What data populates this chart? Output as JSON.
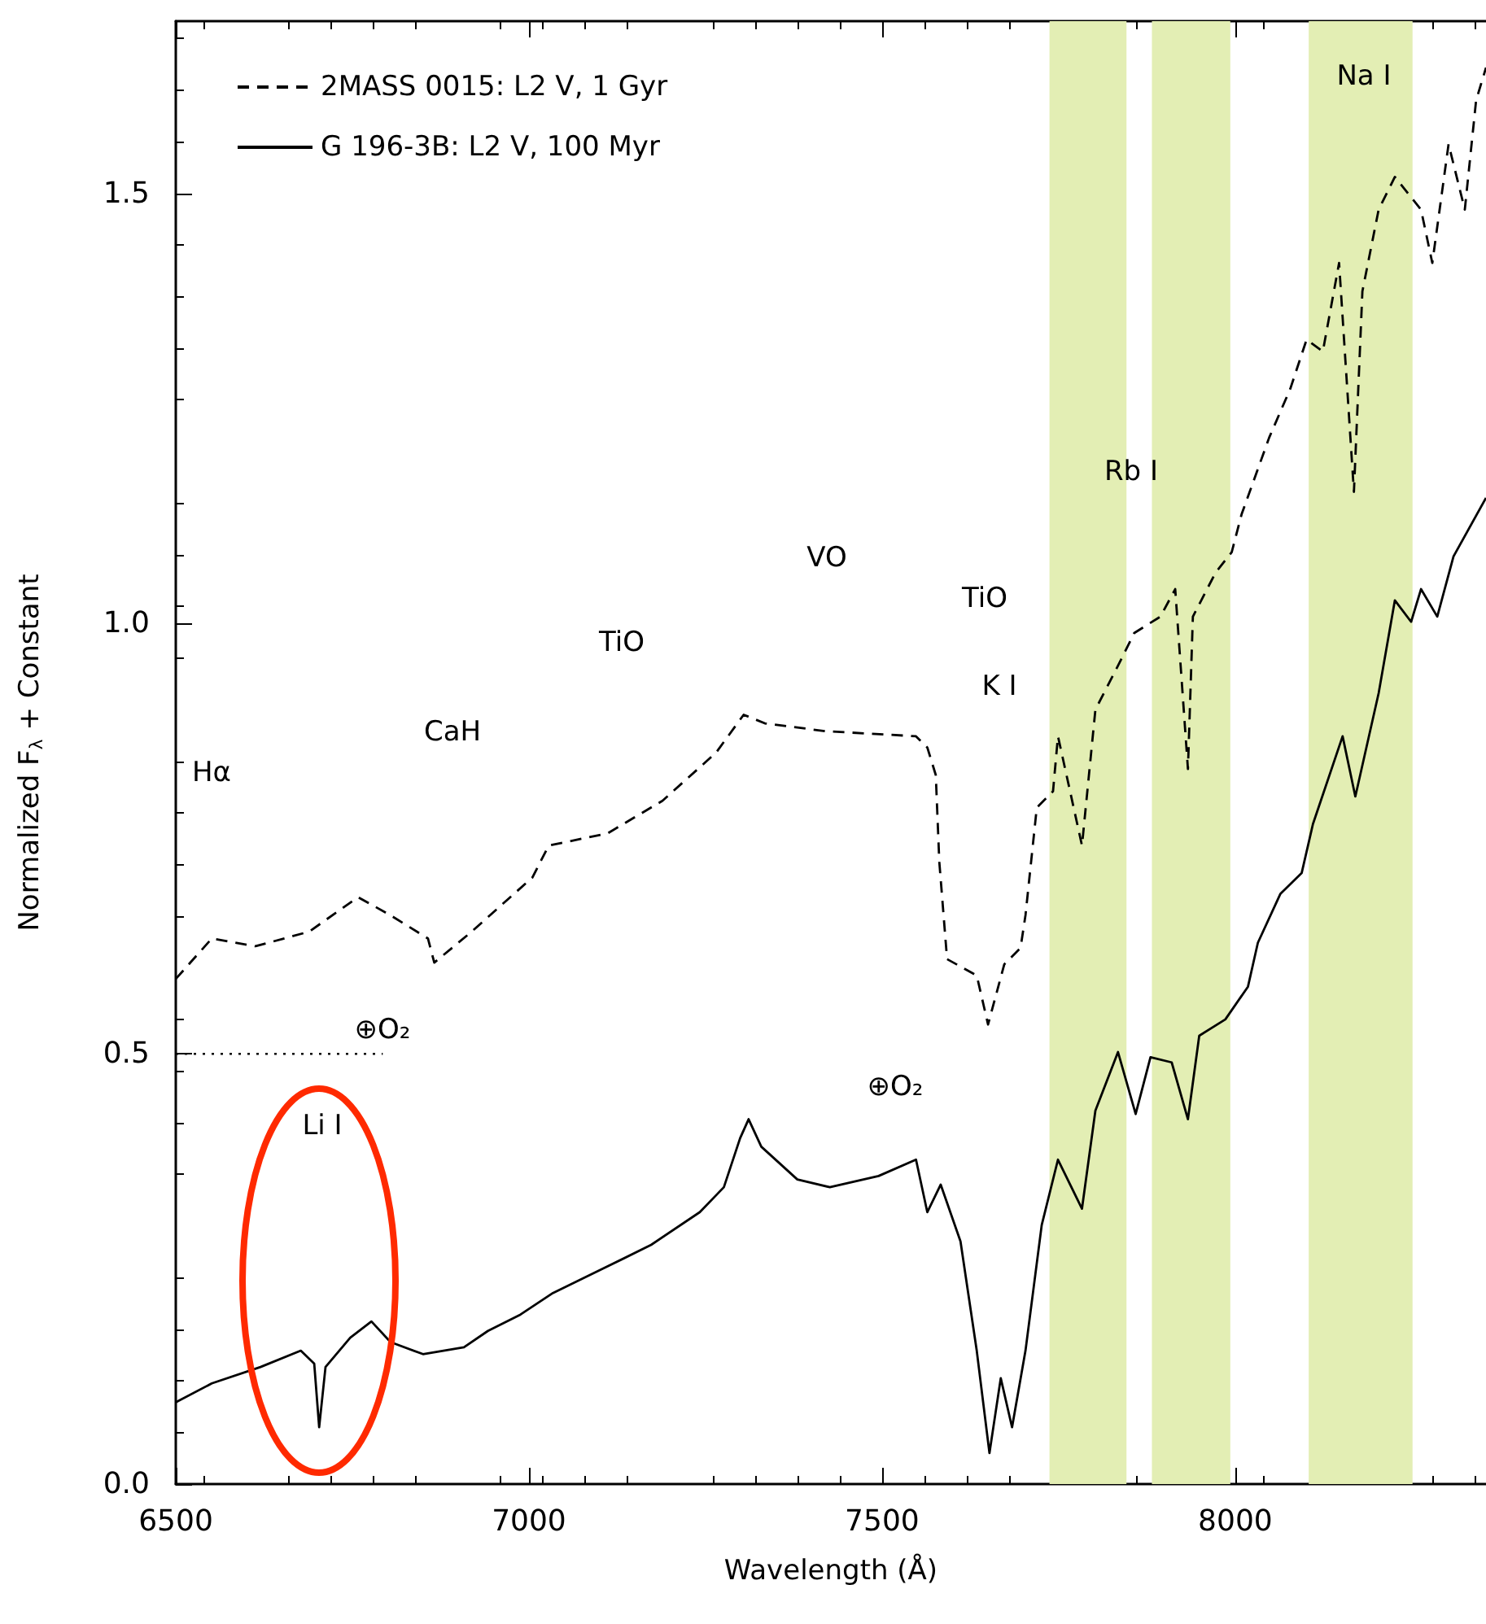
{
  "chart_data": {
    "type": "line",
    "xlabel": "Wavelength (Å)",
    "ylabel": "Normalized F$_{λ}$ + Constant",
    "xlim": [
      6500,
      8355
    ],
    "xticks": [
      6500,
      7000,
      7500,
      8000
    ],
    "ylim": [
      0,
      1.7
    ],
    "yticks": [
      {
        "value": 0,
        "label": "0.0"
      },
      {
        "value": 0.5,
        "label": "0.5"
      },
      {
        "value": 1,
        "label": "1.0"
      },
      {
        "value": 1.5,
        "label": "1.5"
      }
    ],
    "grid": false,
    "legend": "top left",
    "marker": "none",
    "series": [
      {
        "name": "2MASS 0015: L2 V, 1 Gyr",
        "color": "#000000",
        "line_style": "dashed",
        "x": [
          6500,
          6551,
          6613,
          6689,
          6758,
          6804,
          6857,
          6866,
          6919,
          7005,
          7028,
          7111,
          7189,
          7265,
          7304,
          7334,
          7419,
          7548,
          7564,
          7576,
          7581,
          7592,
          7634,
          7650,
          7673,
          7696,
          7703,
          7719,
          7742,
          7749,
          7783,
          7802,
          7834,
          7857,
          7894,
          7915,
          7933,
          7940,
          7972,
          7995,
          8009,
          8048,
          8078,
          8101,
          8124,
          8147,
          8168,
          8180,
          8203,
          8226,
          8263,
          8279,
          8302,
          8325,
          8341,
          8355
        ],
        "values": [
          0.587,
          0.634,
          0.625,
          0.642,
          0.682,
          0.661,
          0.634,
          0.606,
          0.642,
          0.705,
          0.742,
          0.756,
          0.794,
          0.85,
          0.894,
          0.884,
          0.875,
          0.869,
          0.856,
          0.824,
          0.723,
          0.61,
          0.591,
          0.534,
          0.604,
          0.623,
          0.661,
          0.786,
          0.805,
          0.869,
          0.742,
          0.9,
          0.951,
          0.989,
          1.008,
          1.04,
          0.831,
          1.008,
          1.059,
          1.083,
          1.127,
          1.216,
          1.273,
          1.33,
          1.316,
          1.419,
          1.153,
          1.386,
          1.481,
          1.519,
          1.481,
          1.419,
          1.557,
          1.481,
          1.608,
          1.646
        ]
      },
      {
        "name": "G 196-3B: L2 V, 100 Myr",
        "color": "#000000",
        "line_style": "solid",
        "x": [
          6500,
          6551,
          6620,
          6677,
          6696,
          6703,
          6712,
          6747,
          6777,
          6804,
          6850,
          6908,
          6942,
          6988,
          7034,
          7104,
          7173,
          7242,
          7276,
          7299,
          7311,
          7329,
          7380,
          7426,
          7495,
          7548,
          7564,
          7583,
          7611,
          7634,
          7652,
          7668,
          7684,
          7703,
          7726,
          7749,
          7783,
          7802,
          7834,
          7859,
          7880,
          7910,
          7933,
          7949,
          7986,
          8018,
          8032,
          8064,
          8094,
          8110,
          8152,
          8170,
          8203,
          8226,
          8249,
          8263,
          8286,
          8309,
          8355
        ],
        "values": [
          0.095,
          0.117,
          0.136,
          0.155,
          0.14,
          0.066,
          0.136,
          0.17,
          0.189,
          0.165,
          0.151,
          0.159,
          0.178,
          0.197,
          0.222,
          0.25,
          0.278,
          0.316,
          0.345,
          0.402,
          0.424,
          0.392,
          0.354,
          0.345,
          0.358,
          0.377,
          0.316,
          0.348,
          0.282,
          0.155,
          0.036,
          0.123,
          0.066,
          0.155,
          0.301,
          0.377,
          0.32,
          0.434,
          0.502,
          0.43,
          0.496,
          0.49,
          0.424,
          0.521,
          0.54,
          0.578,
          0.629,
          0.686,
          0.71,
          0.767,
          0.869,
          0.799,
          0.919,
          1.027,
          1.002,
          1.04,
          1.008,
          1.078,
          1.146
        ]
      },
      {
        "type": "line",
        "color": "#000000",
        "line_style": "dotted",
        "x": [
          6500,
          6793
        ],
        "values": [
          0.5,
          0.5
        ]
      }
    ],
    "bands": [
      {
        "axis": "x",
        "from": 7737,
        "to": 7846,
        "color": "#e3eeb4"
      },
      {
        "axis": "x",
        "from": 7882,
        "to": 7993,
        "color": "#e3eeb4"
      },
      {
        "axis": "x",
        "from": 8104,
        "to": 8251,
        "color": "#e3eeb4"
      }
    ],
    "annotations": [
      "Hα",
      "Li I",
      "CaH",
      "TiO",
      "VO",
      "TiO",
      "K I",
      "Rb I",
      "Na I",
      "⊕O₂",
      "⊕O₂"
    ]
  }
}
